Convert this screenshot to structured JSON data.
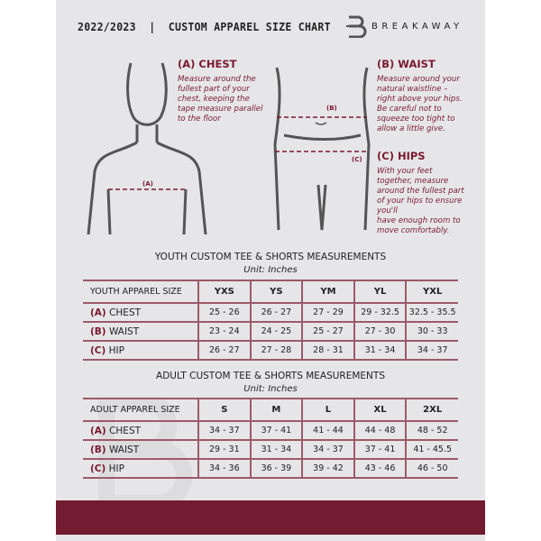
{
  "header": {
    "title": "2022/2023  |  CUSTOM APPAREL SIZE CHART",
    "brand": "BREAKAWAY",
    "watermark": "B"
  },
  "chest": {
    "title": "(A) CHEST",
    "text": "Measure around the\nfullest part of your\nchest, keeping the\ntape measure parallel\nto the floor",
    "marker": "(A)"
  },
  "waist": {
    "title": "(B) WAIST",
    "text": "Measure around your\nnatural waistline –\nright above your hips.\nBe careful not to\nsqueeze too tight to\nallow a little give.",
    "marker": "(B)"
  },
  "hips": {
    "title": "(C) HIPS",
    "text": "With your feet\ntogether, measure\naround the fullest part\nof your hips to ensure\nyou'll\nhave enough room to\nmove comfortably.",
    "marker": "(C)"
  },
  "youth": {
    "title": "YOUTH CUSTOM TEE & SHORTS MEASUREMENTS",
    "unit": "Unit: Inches",
    "header_label": "YOUTH APPAREL SIZE",
    "sizes": [
      "YXS",
      "YS",
      "YM",
      "YL",
      "YXL"
    ],
    "rows": [
      {
        "key": "(A)",
        "label": "CHEST",
        "values": [
          "25 - 26",
          "26 - 27",
          "27 - 29",
          "29 - 32.5",
          "32.5 - 35.5"
        ]
      },
      {
        "key": "(B)",
        "label": "WAIST",
        "values": [
          "23 - 24",
          "24 - 25",
          "25 - 27",
          "27 - 30",
          "30 - 33"
        ]
      },
      {
        "key": "(C)",
        "label": "HIP",
        "values": [
          "26 - 27",
          "27 - 28",
          "28 - 31",
          "31 - 34",
          "34 - 37"
        ]
      }
    ]
  },
  "adult": {
    "title": "ADULT CUSTOM TEE & SHORTS MEASUREMENTS",
    "unit": "Unit: Inches",
    "header_label": "ADULT APPAREL SIZE",
    "sizes": [
      "S",
      "M",
      "L",
      "XL",
      "2XL"
    ],
    "rows": [
      {
        "key": "(A)",
        "label": "CHEST",
        "values": [
          "34 - 37",
          "37 - 41",
          "41 - 44",
          "44 - 48",
          "48 - 52"
        ]
      },
      {
        "key": "(B)",
        "label": "WAIST",
        "values": [
          "29 - 31",
          "31 - 34",
          "34 - 37",
          "37 - 41",
          "41 - 45.5"
        ]
      },
      {
        "key": "(C)",
        "label": "HIP",
        "values": [
          "34 - 36",
          "36 - 39",
          "39 - 42",
          "43 - 46",
          "46 - 50"
        ]
      }
    ]
  },
  "colors": {
    "accent": "#721b31",
    "background": "#e6e6e8"
  }
}
